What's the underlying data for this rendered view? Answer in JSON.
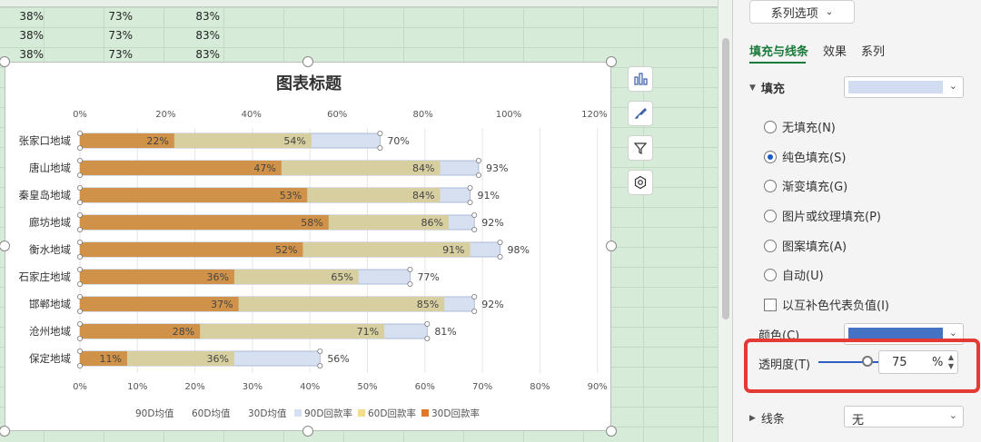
{
  "sheet": {
    "rows": [
      [
        "38%",
        "73%",
        "83%"
      ],
      [
        "38%",
        "73%",
        "83%"
      ],
      [
        "38%",
        "73%",
        "83%"
      ]
    ]
  },
  "chart_data": {
    "type": "bar",
    "title": "图表标题",
    "categories": [
      "张家口地域",
      "唐山地域",
      "秦皇岛地域",
      "廊坊地域",
      "衡水地域",
      "石家庄地域",
      "邯郸地域",
      "沧州地域",
      "保定地域"
    ],
    "series": [
      {
        "name": "90D回款率",
        "color": "#d6e0f0",
        "values": [
          70,
          93,
          91,
          92,
          98,
          77,
          92,
          81,
          56
        ]
      },
      {
        "name": "60D回款率",
        "color": "#d8cfa0",
        "values": [
          54,
          84,
          84,
          86,
          91,
          65,
          85,
          71,
          36
        ]
      },
      {
        "name": "30D回款率",
        "color": "#cf9248",
        "values": [
          22,
          47,
          53,
          58,
          52,
          36,
          37,
          28,
          11
        ]
      }
    ],
    "overlay_series": [
      "90D均值",
      "60D均值",
      "30D均值"
    ],
    "top_axis": {
      "ticks": [
        "0%",
        "20%",
        "40%",
        "60%",
        "80%",
        "100%",
        "120%"
      ],
      "max": 120
    },
    "bottom_axis": {
      "ticks": [
        "0%",
        "10%",
        "20%",
        "30%",
        "40%",
        "50%",
        "60%",
        "70%",
        "80%",
        "90%"
      ],
      "max": 90
    },
    "legend_position": "bottom",
    "grid": true
  },
  "panel": {
    "series_options_label": "系列选项",
    "tabs": [
      "填充与线条",
      "效果",
      "系列"
    ],
    "fill_section": "填充",
    "fill_color": "#d2dcf0",
    "fill_options": [
      "无填充(N)",
      "纯色填充(S)",
      "渐变填充(G)",
      "图片或纹理填充(P)",
      "图案填充(A)",
      "自动(U)"
    ],
    "invert_label": "以互补色代表负值(I)",
    "color_label": "颜色(C)",
    "color_value": "#4472c4",
    "transparency_label": "透明度(T)",
    "transparency_value": "75",
    "transparency_unit": "%",
    "transparency_fraction": 0.75,
    "line_section": "线条",
    "line_value": "无"
  }
}
